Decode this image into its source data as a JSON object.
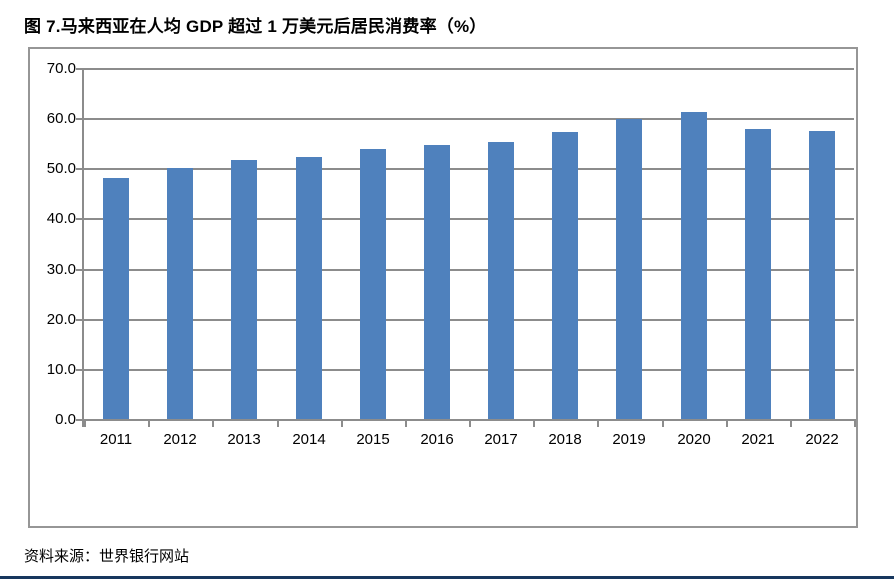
{
  "page": {
    "title": "图 7.马来西亚在人均 GDP 超过 1 万美元后居民消费率（%）",
    "source": "资料来源：世界银行网站",
    "colors": {
      "bar": "#4F81BD",
      "gridline": "#8C8C8C",
      "axis": "#8C8C8C",
      "frame": "#969696",
      "text": "#000000",
      "bottom_rule": "#17375E"
    }
  },
  "chart_data": {
    "type": "bar",
    "title": "图 7.马来西亚在人均 GDP 超过 1 万美元后居民消费率（%）",
    "categories": [
      "2011",
      "2012",
      "2013",
      "2014",
      "2015",
      "2016",
      "2017",
      "2018",
      "2019",
      "2020",
      "2021",
      "2022"
    ],
    "values": [
      48.0,
      50.0,
      51.7,
      52.3,
      53.9,
      54.7,
      55.3,
      57.3,
      59.8,
      61.2,
      57.9,
      57.5
    ],
    "xlabel": "",
    "ylabel": "",
    "ylim": [
      0,
      70
    ],
    "ytick_step": 10,
    "ytick_labels": [
      "0.0",
      "10.0",
      "20.0",
      "30.0",
      "40.0",
      "50.0",
      "60.0",
      "70.0"
    ],
    "grid": true,
    "legend_position": "none"
  }
}
